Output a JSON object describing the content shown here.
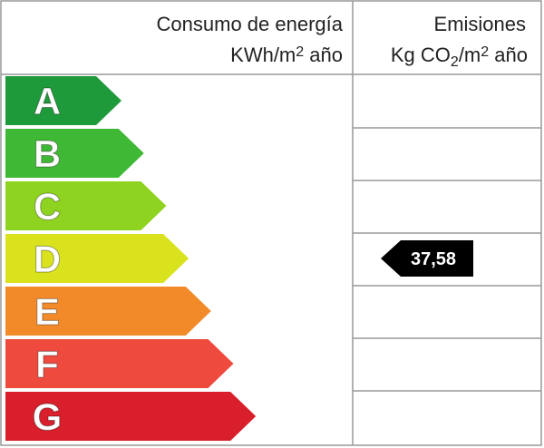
{
  "header": {
    "consumption": {
      "title": "Consumo de energía",
      "unit": [
        "KWh/m",
        "2",
        " año"
      ]
    },
    "emissions": {
      "title": "Emisiones",
      "unit": [
        "Kg CO",
        "2",
        "/m",
        "2",
        " año"
      ]
    }
  },
  "rows": [
    {
      "letter": "A",
      "color": "#1f9a3b"
    },
    {
      "letter": "B",
      "color": "#3fb935"
    },
    {
      "letter": "C",
      "color": "#8ed31f"
    },
    {
      "letter": "D",
      "color": "#d9e21d",
      "emission": "37,58"
    },
    {
      "letter": "E",
      "color": "#f28a2a"
    },
    {
      "letter": "F",
      "color": "#ee4a3e"
    },
    {
      "letter": "G",
      "color": "#d81f2b"
    }
  ]
}
